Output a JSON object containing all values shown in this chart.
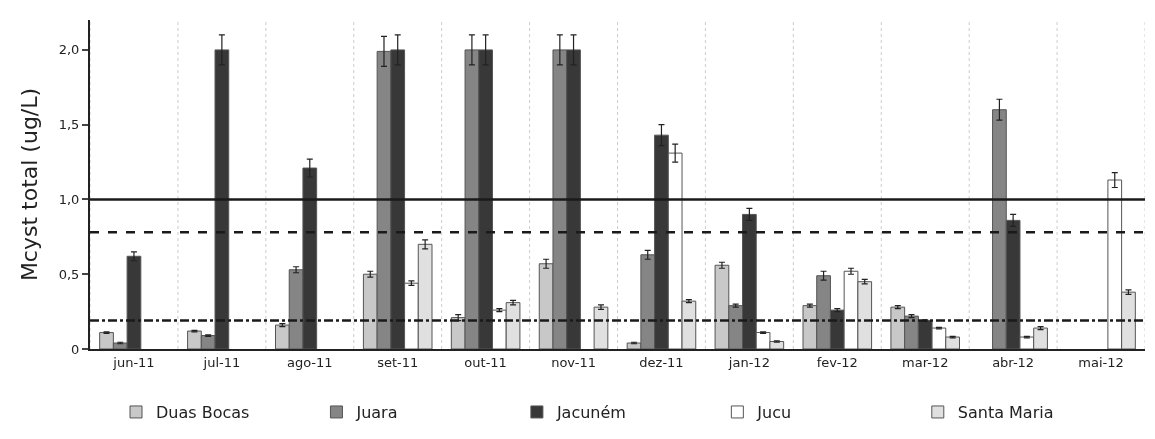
{
  "chart_data": {
    "type": "bar",
    "ylabel": "Mcyst total (ug/L)",
    "categories": [
      "jun-11",
      "jul-11",
      "ago-11",
      "set-11",
      "out-11",
      "nov-11",
      "dez-11",
      "jan-12",
      "fev-12",
      "mar-12",
      "abr-12",
      "mai-12"
    ],
    "series": [
      {
        "name": "Duas Bocas",
        "color": "#c8c8c8",
        "values": [
          0.11,
          0.12,
          0.16,
          0.5,
          0.21,
          0.57,
          0.04,
          0.56,
          0.29,
          0.28,
          null,
          null
        ],
        "errors": [
          0.005,
          0.005,
          0.01,
          0.02,
          0.02,
          0.03,
          0.005,
          0.02,
          0.01,
          0.01,
          null,
          null
        ]
      },
      {
        "name": "Juara",
        "color": "#858585",
        "values": [
          0.04,
          0.09,
          0.53,
          1.99,
          2.0,
          2.0,
          0.63,
          0.29,
          0.49,
          0.22,
          1.6,
          null
        ],
        "errors": [
          0.005,
          0.005,
          0.02,
          0.1,
          0.1,
          0.1,
          0.03,
          0.01,
          0.03,
          0.01,
          0.07,
          null
        ]
      },
      {
        "name": "Jacuném",
        "color": "#383838",
        "values": [
          0.62,
          2.0,
          1.21,
          2.0,
          2.0,
          2.0,
          1.43,
          0.9,
          0.26,
          0.19,
          0.86,
          null
        ],
        "errors": [
          0.03,
          0.1,
          0.06,
          0.1,
          0.1,
          0.1,
          0.07,
          0.04,
          0.01,
          0.005,
          0.04,
          null
        ]
      },
      {
        "name": "Jucu",
        "color": "#ffffff",
        "values": [
          null,
          null,
          null,
          0.44,
          0.26,
          null,
          1.31,
          0.11,
          0.52,
          0.14,
          0.08,
          1.13
        ],
        "errors": [
          null,
          null,
          null,
          0.015,
          0.01,
          null,
          0.06,
          0.005,
          0.02,
          0.005,
          0.005,
          0.05
        ]
      },
      {
        "name": "Santa Maria",
        "color": "#e0e0e0",
        "values": [
          null,
          null,
          null,
          0.7,
          0.31,
          0.28,
          0.32,
          0.05,
          0.45,
          0.08,
          0.14,
          0.38
        ],
        "errors": [
          null,
          null,
          null,
          0.03,
          0.015,
          0.015,
          0.01,
          0.005,
          0.015,
          0.005,
          0.01,
          0.015
        ]
      }
    ],
    "ylim": [
      0,
      2.2
    ],
    "yticks": [
      0,
      {
        "value": 0.5,
        "label": "0,5"
      },
      {
        "value": 1.0,
        "label": "1,0"
      },
      {
        "value": 1.5,
        "label": "1,5"
      },
      {
        "value": 2.0,
        "label": "2,0"
      }
    ],
    "ref_lines": [
      {
        "axis": "y",
        "value": 1.0,
        "color": "#1a1a1a",
        "line_style": "solid"
      },
      {
        "axis": "y",
        "value": 0.78,
        "color": "#1a1a1a",
        "line_style": "dashed"
      },
      {
        "axis": "y",
        "value": 0.19,
        "color": "#1a1a1a",
        "line_style": "dashdot"
      }
    ],
    "grid": "x",
    "legend": "bottom"
  }
}
